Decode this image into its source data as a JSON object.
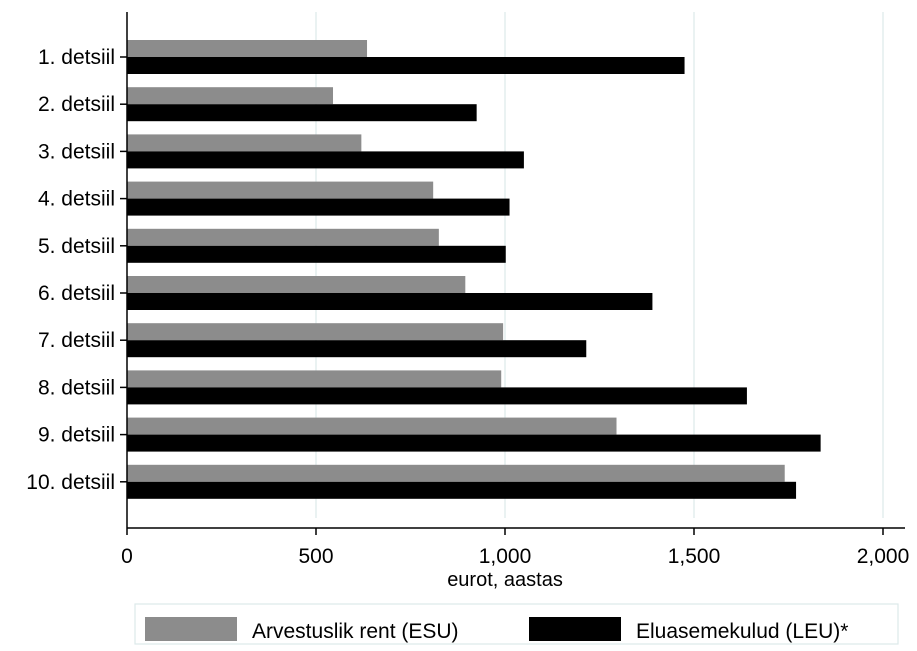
{
  "chart_data": {
    "type": "bar",
    "orientation": "horizontal",
    "title": "",
    "xlabel": "eurot, aastas",
    "ylabel": "",
    "xlim": [
      0,
      2050
    ],
    "xticks": [
      0,
      500,
      1000,
      1500,
      2000
    ],
    "xtick_labels": [
      "0",
      "500",
      "1,000",
      "1,500",
      "2,000"
    ],
    "grid": "vertical",
    "legend_position": "bottom",
    "categories": [
      "1. detsiil",
      "2. detsiil",
      "3. detsiil",
      "4. detsiil",
      "5. detsiil",
      "6. detsiil",
      "7. detsiil",
      "8. detsiil",
      "9. detsiil",
      "10. detsiil"
    ],
    "series": [
      {
        "name": "Arvestuslik rent (ESU)",
        "color": "#8c8c8c",
        "values": [
          635,
          545,
          620,
          810,
          825,
          895,
          995,
          990,
          1295,
          1740
        ]
      },
      {
        "name": "Eluasemekulud (LEU)*",
        "color": "#000000",
        "values": [
          1475,
          925,
          1050,
          1012,
          1002,
          1390,
          1215,
          1640,
          1835,
          1770
        ]
      }
    ]
  }
}
